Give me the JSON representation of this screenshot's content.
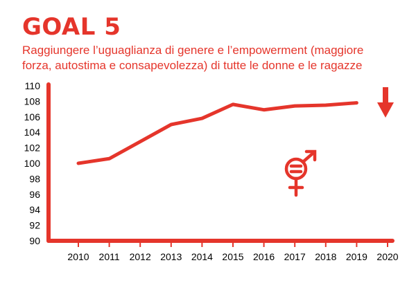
{
  "header": {
    "goal": "GOAL 5",
    "subtitle_line1": "Raggiungere l’uguaglianza di genere e l’empowerment (maggiore",
    "subtitle_line2": "forza, autostima e consapevolezza) di tutte le donne e le ragazze"
  },
  "colors": {
    "accent": "#e5352b",
    "text": "#000000"
  },
  "icons": [
    "down-arrow-icon",
    "gender-equality-icon"
  ],
  "chart_data": {
    "type": "line",
    "x": [
      "2010",
      "2011",
      "2012",
      "2013",
      "2014",
      "2015",
      "2016",
      "2017",
      "2018",
      "2019",
      "2020"
    ],
    "series": [
      {
        "values": [
          100,
          100.6,
          102.8,
          105,
          105.8,
          107.6,
          106.9,
          107.4,
          107.5,
          107.8,
          null
        ]
      }
    ],
    "yticks": [
      "90",
      "92",
      "94",
      "96",
      "98",
      "100",
      "102",
      "104",
      "106",
      "108",
      "110"
    ],
    "ylim": [
      90,
      110
    ],
    "grid": false,
    "legend": "none",
    "trend_marker": "down-arrow"
  }
}
